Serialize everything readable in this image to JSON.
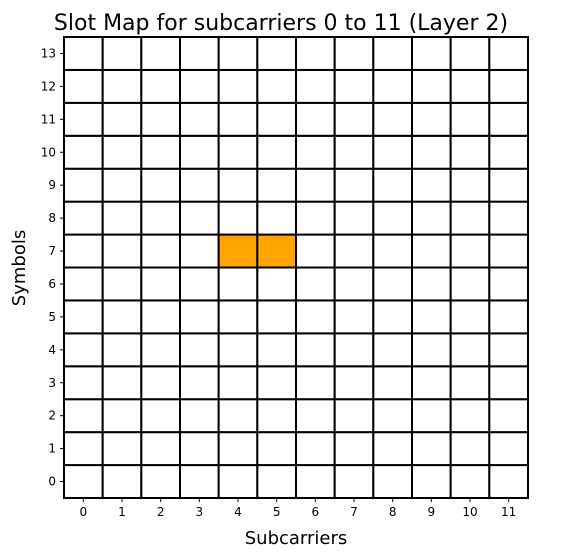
{
  "chart_data": {
    "type": "heatmap",
    "title": "Slot Map for subcarriers 0 to 11 (Layer 2)",
    "xlabel": "Subcarriers",
    "ylabel": "Symbols",
    "x_ticks": [
      "0",
      "1",
      "2",
      "3",
      "4",
      "5",
      "6",
      "7",
      "8",
      "9",
      "10",
      "11"
    ],
    "y_ticks": [
      "0",
      "1",
      "2",
      "3",
      "4",
      "5",
      "6",
      "7",
      "8",
      "9",
      "10",
      "11",
      "12",
      "13"
    ],
    "xlim": [
      -0.5,
      11.5
    ],
    "ylim": [
      -0.5,
      13.5
    ],
    "grid": true,
    "empty_color": "#ffffff",
    "edge_color": "#000000",
    "highlight_color": "#ffa500",
    "highlighted_cells": [
      {
        "subcarrier": 4,
        "symbol": 7
      },
      {
        "subcarrier": 5,
        "symbol": 7
      }
    ]
  }
}
